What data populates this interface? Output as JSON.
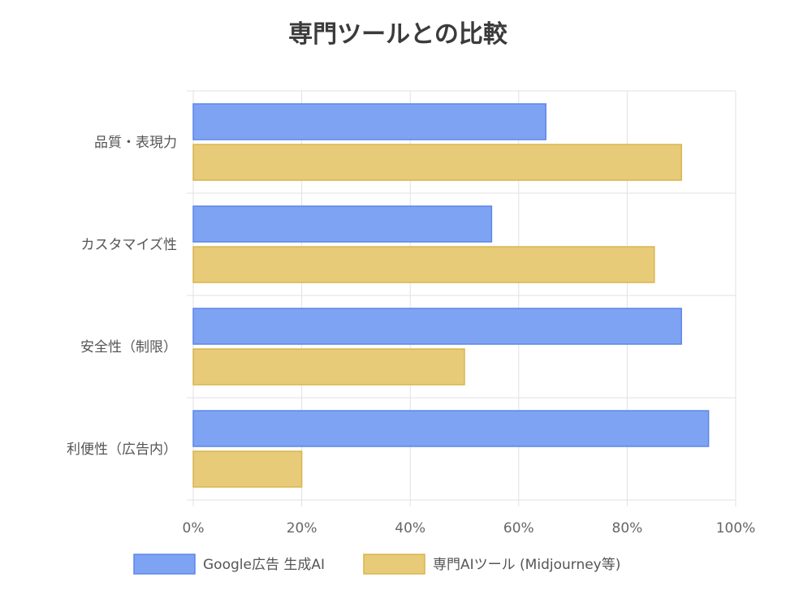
{
  "chart_data": {
    "type": "bar",
    "orientation": "horizontal",
    "title": "専門ツールとの比較",
    "categories": [
      "品質・表現力",
      "カスタマイズ性",
      "安全性（制限）",
      "利便性（広告内）"
    ],
    "series": [
      {
        "name": "Google広告 生成AI",
        "values": [
          65,
          55,
          90,
          95
        ],
        "color": "#7fa3f3",
        "border": "#5b86ea"
      },
      {
        "name": "専門AIツール (Midjourney等)",
        "values": [
          90,
          85,
          50,
          20
        ],
        "color": "#e8cb78",
        "border": "#d9b54e"
      }
    ],
    "xlim": [
      0,
      100
    ],
    "xticks": [
      "0%",
      "20%",
      "40%",
      "60%",
      "80%",
      "100%"
    ],
    "grid": true,
    "legend": "bottom"
  }
}
